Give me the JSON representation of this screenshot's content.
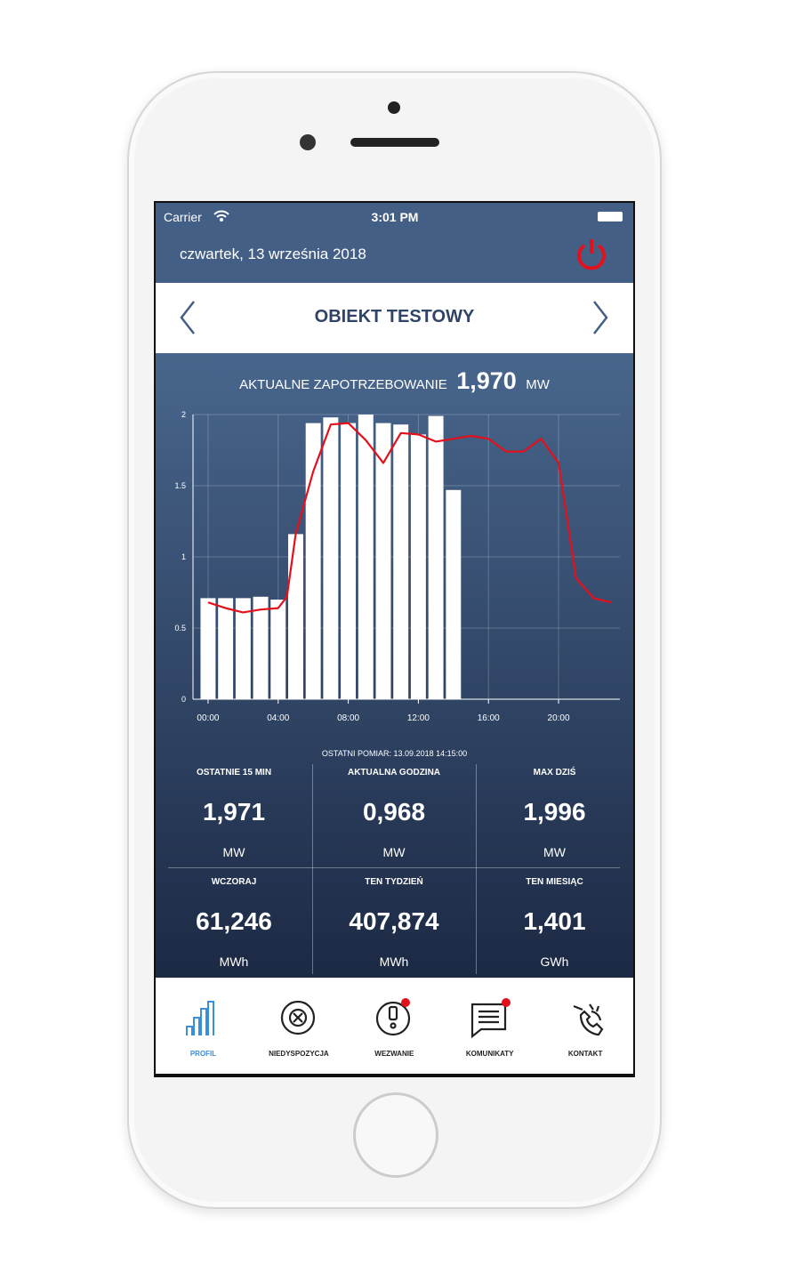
{
  "status_bar": {
    "carrier": "Carrier",
    "time": "3:01 PM"
  },
  "header": {
    "date": "czwartek, 13 września 2018"
  },
  "nav": {
    "title": "OBIEKT TESTOWY"
  },
  "demand": {
    "label": "AKTUALNE ZAPOTRZEBOWANIE",
    "value": "1,970",
    "unit": "MW"
  },
  "chart_data": {
    "type": "bar",
    "grid": true,
    "xlim": [
      -0.86,
      23.5
    ],
    "ylim": [
      0,
      2
    ],
    "xticks": [
      {
        "value": 0,
        "label": "00:00"
      },
      {
        "value": 4,
        "label": "04:00"
      },
      {
        "value": 8,
        "label": "08:00"
      },
      {
        "value": 12,
        "label": "12:00"
      },
      {
        "value": 16,
        "label": "16:00"
      },
      {
        "value": 20,
        "label": "20:00"
      }
    ],
    "yticks": [
      0,
      0.5,
      1,
      1.5,
      2
    ],
    "series": [
      {
        "type": "bar",
        "color": "#ffffff",
        "x": [
          0,
          1,
          2,
          3,
          4,
          5,
          6,
          7,
          8,
          9,
          10,
          11,
          12,
          13,
          14
        ],
        "values": [
          0.71,
          0.71,
          0.71,
          0.72,
          0.7,
          1.16,
          1.94,
          1.98,
          1.94,
          2.0,
          1.94,
          1.93,
          1.86,
          1.99,
          1.47
        ]
      },
      {
        "type": "line",
        "color": "#e3111b",
        "x": [
          0,
          1,
          2,
          3,
          4,
          4.5,
          5,
          6,
          7,
          8,
          9,
          10,
          11,
          12,
          13,
          14,
          15,
          16,
          17,
          18,
          19,
          20,
          21,
          22,
          23
        ],
        "values": [
          0.68,
          0.64,
          0.61,
          0.63,
          0.64,
          0.72,
          1.16,
          1.6,
          1.93,
          1.94,
          1.82,
          1.66,
          1.87,
          1.86,
          1.81,
          1.83,
          1.85,
          1.83,
          1.74,
          1.74,
          1.83,
          1.66,
          0.85,
          0.71,
          0.68
        ]
      }
    ]
  },
  "last_measurement": "OSTATNI POMIAR: 13.09.2018 14:15:00",
  "stats": [
    {
      "label": "OSTATNIE 15 MIN",
      "value": "1,971",
      "unit": "MW"
    },
    {
      "label": "AKTUALNA GODZINA",
      "value": "0,968",
      "unit": "MW"
    },
    {
      "label": "MAX DZIŚ",
      "value": "1,996",
      "unit": "MW"
    },
    {
      "label": "WCZORAJ",
      "value": "61,246",
      "unit": "MWh"
    },
    {
      "label": "TEN TYDZIEŃ",
      "value": "407,874",
      "unit": "MWh"
    },
    {
      "label": "TEN MIESIĄC",
      "value": "1,401",
      "unit": "GWh"
    }
  ],
  "tabs": {
    "active": 0,
    "items": [
      "PROFIL",
      "NIEDYSPOZYCJA",
      "WEZWANIE",
      "KOMUNIKATY",
      "KONTAKT"
    ]
  }
}
